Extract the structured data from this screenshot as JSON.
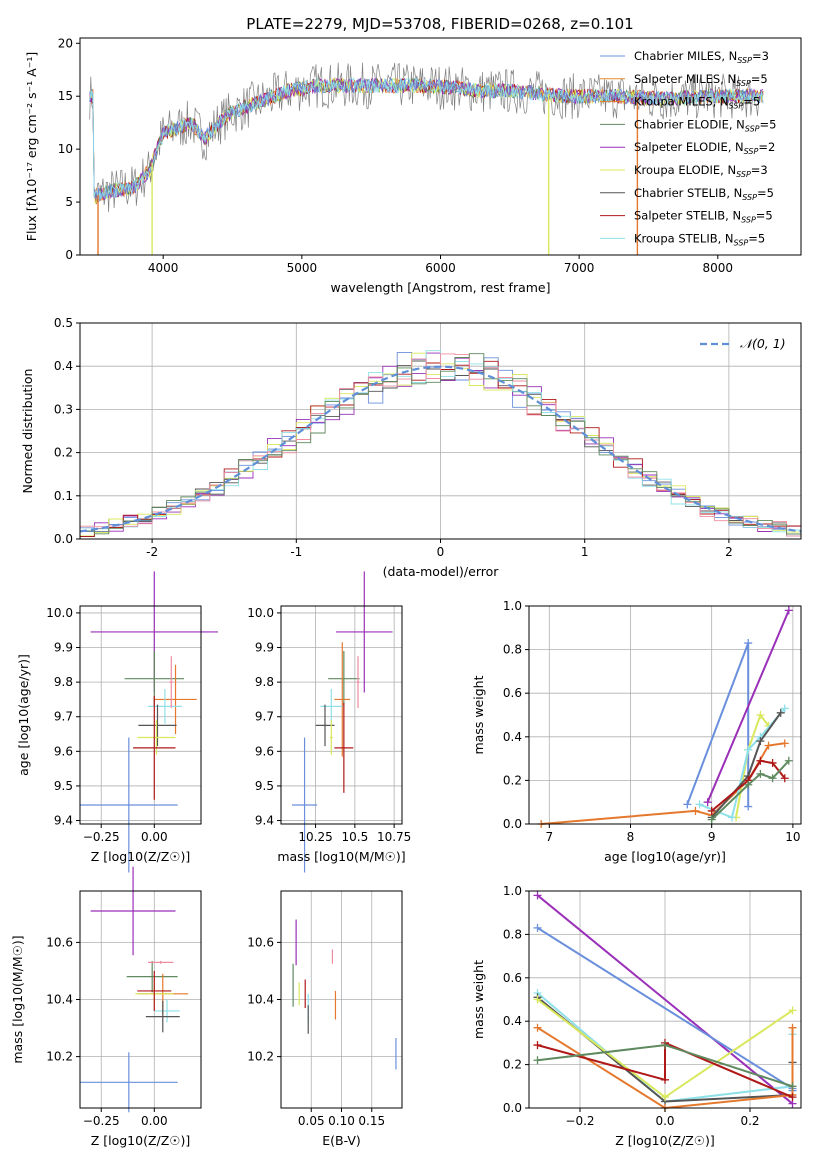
{
  "title": "PLATE=2279, MJD=53708, FIBERID=0268, z=0.101",
  "series_colors": {
    "Chabrier MILES": "#6a8fdc",
    "Salpeter MILES": "#e58a2e",
    "Kroupa MILES": "#e5782d",
    "Chabrier ELODIE": "#5f8a5f",
    "Salpeter ELODIE": "#9a2fb8",
    "Kroupa ELODIE": "#d9e85c",
    "Chabrier STELIB": "#555555",
    "Salpeter STELIB": "#b01818",
    "Kroupa STELIB": "#8fe0e8",
    "Kroupa MILES alt": "#f08ca0",
    "gaussian": "#5f8fd8"
  },
  "legend": [
    {
      "name": "Chabrier MILES",
      "nssp": "3"
    },
    {
      "name": "Salpeter MILES",
      "nssp": "5"
    },
    {
      "name": "Kroupa MILES",
      "nssp": "5"
    },
    {
      "name": "Chabrier ELODIE",
      "nssp": "5"
    },
    {
      "name": "Salpeter ELODIE",
      "nssp": "2"
    },
    {
      "name": "Kroupa ELODIE",
      "nssp": "3"
    },
    {
      "name": "Chabrier STELIB",
      "nssp": "5"
    },
    {
      "name": "Salpeter STELIB",
      "nssp": "5"
    },
    {
      "name": "Kroupa STELIB",
      "nssp": "5"
    }
  ],
  "chart_data": [
    {
      "type": "line",
      "id": "spectrum",
      "xlabel": "wavelength [Angstrom, rest frame]",
      "ylabel": "Flux [fλ10⁻¹⁷ erg cm⁻² s⁻¹ A⁻¹]",
      "xlim": [
        3400,
        8600
      ],
      "ylim": [
        0,
        20.5
      ],
      "xticks": [
        4000,
        5000,
        6000,
        7000,
        8000
      ],
      "yticks": [
        0,
        5,
        10,
        15,
        20
      ],
      "envelope": {
        "x": [
          3500,
          3600,
          3700,
          3800,
          3900,
          4000,
          4100,
          4200,
          4300,
          4400,
          4500,
          4700,
          4900,
          5100,
          5300,
          5500,
          5700,
          5900,
          6100,
          6300,
          6500,
          6700,
          6900,
          7100,
          7300,
          7500,
          7700,
          7900,
          8100,
          8300
        ],
        "y": [
          5.5,
          6.0,
          6.2,
          6.5,
          8.0,
          11.5,
          12.0,
          12.5,
          11.0,
          12.5,
          13.5,
          14.5,
          15.5,
          16.0,
          16.0,
          16.0,
          16.0,
          16.0,
          15.8,
          15.5,
          15.5,
          15.3,
          15.0,
          15.0,
          15.0,
          14.8,
          14.8,
          15.0,
          15.0,
          15.0
        ]
      },
      "dips": [
        {
          "x": 3530,
          "ymin": 0
        },
        {
          "x": 3920,
          "ymin": 0
        },
        {
          "x": 6780,
          "ymin": 0
        },
        {
          "x": 7420,
          "ymin": 0
        }
      ]
    },
    {
      "type": "line",
      "id": "residual-histogram",
      "xlabel": "(data-model)/error",
      "ylabel": "Normed distribution",
      "xlim": [
        -2.5,
        2.5
      ],
      "ylim": [
        0,
        0.5
      ],
      "xticks": [
        -2,
        -1,
        0,
        1,
        2
      ],
      "yticks": [
        0.0,
        0.1,
        0.2,
        0.3,
        0.4,
        0.5
      ],
      "legend_label": "𝒩(0, 1)",
      "bin_width": 0.1
    },
    {
      "type": "scatter",
      "id": "age-vs-Z",
      "xlabel": "Z [log10(Z/Z☉)]",
      "ylabel": "age  [log10(age/yr)]",
      "xlim": [
        -0.35,
        0.22
      ],
      "ylim": [
        9.39,
        10.02
      ],
      "xticks": [
        -0.25,
        0.0
      ],
      "xticklabels": [
        "−0.25",
        "0.00"
      ],
      "yticks": [
        9.4,
        9.5,
        9.6,
        9.7,
        9.8,
        9.9,
        10.0
      ],
      "points": [
        {
          "series": "Salpeter ELODIE",
          "x": 0.0,
          "y": 9.945,
          "xerr": 0.3,
          "yerr": 0.35
        },
        {
          "series": "Chabrier MILES",
          "x": -0.12,
          "y": 9.445,
          "xerr": 0.23,
          "yerr": 0.39
        },
        {
          "series": "Chabrier ELODIE",
          "x": 0.0,
          "y": 9.81,
          "xerr": 0.14,
          "yerr": 0.16
        },
        {
          "series": "Kroupa MILES",
          "x": 0.1,
          "y": 9.75,
          "xerr": 0.1,
          "yerr": 0.2
        },
        {
          "series": "Kroupa STELIB",
          "x": 0.05,
          "y": 9.73,
          "xerr": 0.08,
          "yerr": 0.1
        },
        {
          "series": "Chabrier STELIB",
          "x": 0.015,
          "y": 9.675,
          "xerr": 0.09,
          "yerr": 0.12
        },
        {
          "series": "Kroupa ELODIE",
          "x": 0.01,
          "y": 9.64,
          "xerr": 0.09,
          "yerr": 0.1
        },
        {
          "series": "Salpeter STELIB",
          "x": 0.0,
          "y": 9.61,
          "xerr": 0.1,
          "yerr": 0.3
        },
        {
          "series": "Kroupa MILES alt",
          "x": 0.08,
          "y": 9.8,
          "xerr": 0.01,
          "yerr": 0.15
        }
      ]
    },
    {
      "type": "scatter",
      "id": "age-vs-mass",
      "xlabel": "mass [log10(M/M☉)]",
      "ylabel": "",
      "xlim": [
        10.03,
        10.8
      ],
      "ylim": [
        9.39,
        10.02
      ],
      "xticks": [
        10.25,
        10.5,
        10.75
      ],
      "yticks": [
        9.4,
        9.5,
        9.6,
        9.7,
        9.8,
        9.9,
        10.0
      ],
      "points": [
        {
          "series": "Salpeter ELODIE",
          "x": 10.56,
          "y": 9.945,
          "xerr": 0.18,
          "yerr": 0.35
        },
        {
          "series": "Chabrier MILES",
          "x": 10.18,
          "y": 9.445,
          "xerr": 0.08,
          "yerr": 0.39
        },
        {
          "series": "Chabrier ELODIE",
          "x": 10.43,
          "y": 9.81,
          "xerr": 0.1,
          "yerr": 0.16
        },
        {
          "series": "Kroupa MILES",
          "x": 10.42,
          "y": 9.75,
          "xerr": 0.05,
          "yerr": 0.33
        },
        {
          "series": "Kroupa STELIB",
          "x": 10.35,
          "y": 9.73,
          "xerr": 0.07,
          "yerr": 0.1
        },
        {
          "series": "Chabrier STELIB",
          "x": 10.31,
          "y": 9.675,
          "xerr": 0.06,
          "yerr": 0.12
        },
        {
          "series": "Kroupa ELODIE",
          "x": 10.35,
          "y": 9.64,
          "xerr": 0.01,
          "yerr": 0.1
        },
        {
          "series": "Salpeter STELIB",
          "x": 10.43,
          "y": 9.61,
          "xerr": 0.06,
          "yerr": 0.26
        },
        {
          "series": "Kroupa MILES alt",
          "x": 10.52,
          "y": 9.8,
          "xerr": 0.01,
          "yerr": 0.15
        }
      ]
    },
    {
      "type": "line",
      "id": "mass-weight-vs-age",
      "xlabel": "age  [log10(age/yr)]",
      "ylabel": "mass weight",
      "xlim": [
        6.75,
        10.1
      ],
      "ylim": [
        0,
        1.0
      ],
      "xticks": [
        7,
        8,
        9,
        10
      ],
      "yticks": [
        0.0,
        0.2,
        0.4,
        0.6,
        0.8,
        1.0
      ],
      "series": [
        {
          "name": "Chabrier MILES",
          "x": [
            8.7,
            9.45,
            9.45
          ],
          "y": [
            0.09,
            0.83,
            0.08
          ]
        },
        {
          "name": "Salpeter ELODIE",
          "x": [
            8.95,
            9.95
          ],
          "y": [
            0.1,
            0.98
          ]
        },
        {
          "name": "Kroupa MILES",
          "x": [
            6.9,
            8.8,
            9.0,
            9.45,
            9.7,
            9.9
          ],
          "y": [
            0.0,
            0.06,
            0.04,
            0.2,
            0.36,
            0.37
          ]
        },
        {
          "name": "Kroupa ELODIE",
          "x": [
            9.3,
            9.45,
            9.6,
            9.7
          ],
          "y": [
            0.03,
            0.34,
            0.5,
            0.45
          ]
        },
        {
          "name": "Kroupa STELIB",
          "x": [
            8.85,
            9.25,
            9.45,
            9.6,
            9.9
          ],
          "y": [
            0.09,
            0.03,
            0.34,
            0.4,
            0.53
          ]
        },
        {
          "name": "Chabrier STELIB",
          "x": [
            9.0,
            9.45,
            9.6,
            9.85
          ],
          "y": [
            0.03,
            0.22,
            0.38,
            0.51
          ]
        },
        {
          "name": "Salpeter STELIB",
          "x": [
            9.0,
            9.45,
            9.6,
            9.75,
            9.9
          ],
          "y": [
            0.06,
            0.2,
            0.29,
            0.28,
            0.21
          ]
        },
        {
          "name": "Chabrier ELODIE",
          "x": [
            9.0,
            9.45,
            9.6,
            9.75,
            9.95
          ],
          "y": [
            0.02,
            0.18,
            0.23,
            0.21,
            0.29
          ]
        }
      ]
    },
    {
      "type": "scatter",
      "id": "mass-vs-Z",
      "xlabel": "Z [log10(Z/Z☉)]",
      "ylabel": "mass [log10(M/M☉)]",
      "xlim": [
        -0.35,
        0.22
      ],
      "ylim": [
        10.02,
        10.78
      ],
      "xticks": [
        -0.25,
        0.0
      ],
      "xticklabels": [
        "−0.25",
        "0.00"
      ],
      "yticks": [
        10.2,
        10.4,
        10.6
      ],
      "points": [
        {
          "series": "Salpeter ELODIE",
          "x": -0.1,
          "y": 10.71,
          "xerr": 0.2,
          "yerr": 0.31
        },
        {
          "series": "Chabrier MILES",
          "x": -0.12,
          "y": 10.11,
          "xerr": 0.23,
          "yerr": 0.21
        },
        {
          "series": "Chabrier ELODIE",
          "x": -0.01,
          "y": 10.48,
          "xerr": 0.12,
          "yerr": 0.11
        },
        {
          "series": "Kroupa MILES",
          "x": 0.04,
          "y": 10.42,
          "xerr": 0.12,
          "yerr": 0.14
        },
        {
          "series": "Kroupa STELIB",
          "x": 0.06,
          "y": 10.36,
          "xerr": 0.06,
          "yerr": 0.08
        },
        {
          "series": "Chabrier STELIB",
          "x": 0.04,
          "y": 10.34,
          "xerr": 0.08,
          "yerr": 0.11
        },
        {
          "series": "Kroupa ELODIE",
          "x": 0.0,
          "y": 10.42,
          "xerr": 0.09,
          "yerr": 0.08
        },
        {
          "series": "Salpeter STELIB",
          "x": 0.0,
          "y": 10.43,
          "xerr": 0.08,
          "yerr": 0.14
        },
        {
          "series": "Kroupa MILES alt",
          "x": 0.03,
          "y": 10.53,
          "xerr": 0.06,
          "yerr": 0.01
        }
      ]
    },
    {
      "type": "scatter",
      "id": "mass-vs-ebv",
      "xlabel": "E(B-V)",
      "ylabel": "",
      "xlim": [
        0.0,
        0.2
      ],
      "ylim": [
        10.02,
        10.78
      ],
      "xticks": [
        0.05,
        0.1,
        0.15
      ],
      "xticklabels": [
        "0.05",
        "0.10",
        "0.15"
      ],
      "yticks": [
        10.2,
        10.4,
        10.6
      ],
      "points": [
        {
          "series": "Salpeter ELODIE",
          "x": 0.025,
          "y": 10.6,
          "yerr": 0.16
        },
        {
          "series": "Chabrier MILES",
          "x": 0.19,
          "y": 10.21,
          "yerr": 0.11
        },
        {
          "series": "Chabrier ELODIE",
          "x": 0.02,
          "y": 10.45,
          "yerr": 0.15
        },
        {
          "series": "Kroupa MILES",
          "x": 0.09,
          "y": 10.38,
          "yerr": 0.1
        },
        {
          "series": "Kroupa STELIB",
          "x": 0.045,
          "y": 10.37,
          "yerr": 0.1
        },
        {
          "series": "Chabrier STELIB",
          "x": 0.045,
          "y": 10.33,
          "yerr": 0.1
        },
        {
          "series": "Kroupa ELODIE",
          "x": 0.03,
          "y": 10.42,
          "yerr": 0.08
        },
        {
          "series": "Salpeter STELIB",
          "x": 0.04,
          "y": 10.42,
          "yerr": 0.1
        },
        {
          "series": "Kroupa MILES alt",
          "x": 0.085,
          "y": 10.55,
          "yerr": 0.05
        }
      ]
    },
    {
      "type": "line",
      "id": "mass-weight-vs-Z",
      "xlabel": "Z [log10(Z/Z☉)]",
      "ylabel": "mass weight",
      "xlim": [
        -0.32,
        0.32
      ],
      "ylim": [
        0,
        1.0
      ],
      "xticks": [
        -0.2,
        0.0,
        0.2
      ],
      "xticklabels": [
        "−0.2",
        "0.0",
        "0.2"
      ],
      "yticks": [
        0.0,
        0.2,
        0.4,
        0.6,
        0.8,
        1.0
      ],
      "series": [
        {
          "name": "Salpeter ELODIE",
          "x": [
            -0.3,
            0.3
          ],
          "y": [
            0.98,
            0.02
          ]
        },
        {
          "name": "Chabrier MILES",
          "x": [
            -0.3,
            0.3,
            0.3
          ],
          "y": [
            0.83,
            0.09,
            0.08
          ]
        },
        {
          "name": "Kroupa STELIB",
          "x": [
            -0.3,
            0.0,
            0.3,
            0.3
          ],
          "y": [
            0.53,
            0.03,
            0.1,
            0.34
          ]
        },
        {
          "name": "Chabrier STELIB",
          "x": [
            -0.3,
            0.0,
            0.3,
            0.3
          ],
          "y": [
            0.51,
            0.03,
            0.06,
            0.21
          ]
        },
        {
          "name": "Kroupa ELODIE",
          "x": [
            -0.3,
            0.0,
            0.3
          ],
          "y": [
            0.5,
            0.05,
            0.45
          ]
        },
        {
          "name": "Kroupa MILES",
          "x": [
            -0.3,
            0.0,
            0.3,
            0.3
          ],
          "y": [
            0.37,
            0.0,
            0.06,
            0.37
          ]
        },
        {
          "name": "Salpeter STELIB",
          "x": [
            -0.3,
            0.0,
            0.0,
            0.3
          ],
          "y": [
            0.29,
            0.13,
            0.3,
            0.05
          ]
        },
        {
          "name": "Chabrier ELODIE",
          "x": [
            -0.3,
            0.0,
            0.3
          ],
          "y": [
            0.22,
            0.29,
            0.1
          ]
        }
      ]
    }
  ]
}
